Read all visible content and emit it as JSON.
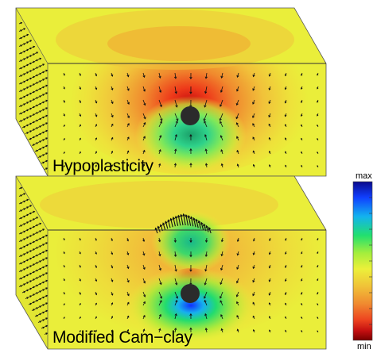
{
  "panels": [
    {
      "label": "Hypoplasticity",
      "variant": "hypoplasticity"
    },
    {
      "label": "Modified Cam−clay",
      "variant": "cam-clay"
    }
  ],
  "colorbar": {
    "max_label": "max",
    "min_label": "min",
    "colors_top_to_bottom": [
      "#0a0a8c",
      "#1040ff",
      "#13b3ee",
      "#22e06e",
      "#a4ee3c",
      "#ecf03a",
      "#f0c238",
      "#f08a30",
      "#ed4420",
      "#c40f10",
      "#780000"
    ]
  },
  "colors": {
    "field_background": "#eaee3a",
    "field_side": "#dde030",
    "inclusion": "#2b2b2b",
    "vector": "#111111"
  }
}
